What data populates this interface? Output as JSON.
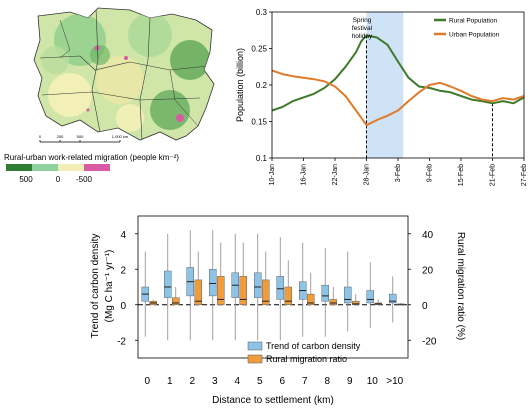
{
  "map": {
    "caption": "Rural-urban work-related migration (people km⁻²)",
    "scale_labels": [
      "0",
      "250",
      "500",
      "1,000 km"
    ],
    "legend_labels": [
      "500",
      "0",
      "-500"
    ],
    "legend_colors": [
      "#2e7d32",
      "#8fd19e",
      "#f2eeb5",
      "#d85aa5"
    ]
  },
  "chart_data": [
    {
      "type": "line",
      "title": "",
      "ylabel": "Population (billion)",
      "xlabel": "",
      "ylim": [
        0.1,
        0.3
      ],
      "yticks": [
        "0.1",
        "0.15",
        "0.2",
        "0.25",
        "0.3"
      ],
      "xticks": [
        "10-Jan",
        "16-Jan",
        "22-Jan",
        "28-Jan",
        "3-Feb",
        "9-Feb",
        "15-Feb",
        "21-Feb",
        "27-Feb"
      ],
      "xrange_days": [
        0,
        48
      ],
      "annotation": {
        "text": [
          "Spring",
          "festival",
          "holiday"
        ],
        "range_days": [
          18,
          25
        ],
        "color": "#cfe3f7"
      },
      "vlines_days": [
        18,
        42
      ],
      "legend": "top-right",
      "series": [
        {
          "name": "Rural Population",
          "color": "#3f7a2a",
          "days": [
            0,
            2,
            4,
            6,
            8,
            10,
            12,
            14,
            16,
            17,
            18,
            20,
            22,
            24,
            26,
            28,
            30,
            32,
            34,
            36,
            38,
            40,
            42,
            44,
            46,
            48
          ],
          "values": [
            0.165,
            0.17,
            0.178,
            0.183,
            0.188,
            0.196,
            0.208,
            0.225,
            0.245,
            0.26,
            0.268,
            0.265,
            0.255,
            0.232,
            0.21,
            0.198,
            0.196,
            0.192,
            0.19,
            0.185,
            0.18,
            0.178,
            0.175,
            0.178,
            0.175,
            0.183
          ]
        },
        {
          "name": "Urban Population",
          "color": "#e07b2a",
          "days": [
            0,
            2,
            4,
            6,
            8,
            10,
            12,
            14,
            16,
            17,
            18,
            20,
            22,
            24,
            26,
            28,
            30,
            32,
            34,
            36,
            38,
            40,
            42,
            44,
            46,
            48
          ],
          "values": [
            0.22,
            0.215,
            0.212,
            0.21,
            0.208,
            0.205,
            0.198,
            0.185,
            0.165,
            0.155,
            0.145,
            0.152,
            0.158,
            0.165,
            0.178,
            0.19,
            0.2,
            0.203,
            0.198,
            0.192,
            0.185,
            0.18,
            0.178,
            0.182,
            0.18,
            0.185
          ]
        }
      ]
    },
    {
      "type": "box",
      "title": "",
      "xlabel": "Distance to settlement (km)",
      "ylabel_left": [
        "Trend of carbon density",
        "(Mg C ha⁻¹ yr⁻¹)"
      ],
      "ylabel_right": "Rural migration ratio (%)",
      "ylim_left": [
        -3,
        5
      ],
      "ylim_right": [
        -30,
        50
      ],
      "yticks_left": [
        "-2",
        "0",
        "2",
        "4"
      ],
      "yticks_right": [
        "-20",
        "0",
        "20",
        "40"
      ],
      "categories": [
        "0",
        "1",
        "2",
        "3",
        "4",
        "5",
        "6",
        "7",
        "8",
        "9",
        "10",
        ">10"
      ],
      "legend": "bottom-center",
      "series": [
        {
          "name": "Trend of carbon density",
          "color": "#8ec3e8",
          "axis": "left",
          "boxes": [
            {
              "min": -1.8,
              "q1": 0.2,
              "median": 0.6,
              "q3": 1.0,
              "max": 3.0
            },
            {
              "min": -2.0,
              "q1": 0.4,
              "median": 1.0,
              "q3": 1.9,
              "max": 4.0
            },
            {
              "min": -2.0,
              "q1": 0.5,
              "median": 1.3,
              "q3": 2.1,
              "max": 4.2
            },
            {
              "min": -2.0,
              "q1": 0.5,
              "median": 1.2,
              "q3": 2.0,
              "max": 4.2
            },
            {
              "min": -2.0,
              "q1": 0.4,
              "median": 1.1,
              "q3": 1.8,
              "max": 4.0
            },
            {
              "min": -2.0,
              "q1": 0.4,
              "median": 1.0,
              "q3": 1.8,
              "max": 4.0
            },
            {
              "min": -2.0,
              "q1": 0.3,
              "median": 0.9,
              "q3": 1.6,
              "max": 3.8
            },
            {
              "min": -1.8,
              "q1": 0.3,
              "median": 0.8,
              "q3": 1.3,
              "max": 3.5
            },
            {
              "min": -1.8,
              "q1": 0.2,
              "median": 0.5,
              "q3": 1.1,
              "max": 3.2
            },
            {
              "min": -1.5,
              "q1": 0.1,
              "median": 0.3,
              "q3": 1.0,
              "max": 3.0
            },
            {
              "min": -1.3,
              "q1": 0.1,
              "median": 0.3,
              "q3": 0.8,
              "max": 2.4
            },
            {
              "min": -1.0,
              "q1": 0.1,
              "median": 0.2,
              "q3": 0.6,
              "max": 1.6
            }
          ]
        },
        {
          "name": "Rural migration ratio",
          "color": "#ee9c3e",
          "axis": "right",
          "boxes": [
            {
              "min": 0,
              "q1": 0,
              "median": 1,
              "q3": 2,
              "max": 3
            },
            {
              "min": 0,
              "q1": 0,
              "median": 1,
              "q3": 4,
              "max": 10
            },
            {
              "min": 0,
              "q1": 0,
              "median": 2,
              "q3": 14,
              "max": 30
            },
            {
              "min": 0,
              "q1": 0,
              "median": 3,
              "q3": 16,
              "max": 35
            },
            {
              "min": 0,
              "q1": 0,
              "median": 3,
              "q3": 16,
              "max": 35
            },
            {
              "min": 0,
              "q1": 0,
              "median": 2,
              "q3": 14,
              "max": 30
            },
            {
              "min": 0,
              "q1": 0,
              "median": 2,
              "q3": 10,
              "max": 25
            },
            {
              "min": 0,
              "q1": 0,
              "median": 1,
              "q3": 6,
              "max": 18
            },
            {
              "min": 0,
              "q1": 0,
              "median": 1,
              "q3": 3,
              "max": 10
            },
            {
              "min": 0,
              "q1": 0,
              "median": 0.5,
              "q3": 2,
              "max": 6
            },
            {
              "min": 0,
              "q1": 0,
              "median": 0.5,
              "q3": 1,
              "max": 3
            },
            {
              "min": 0,
              "q1": 0,
              "median": 0,
              "q3": 0.5,
              "max": 1
            }
          ]
        }
      ]
    }
  ]
}
